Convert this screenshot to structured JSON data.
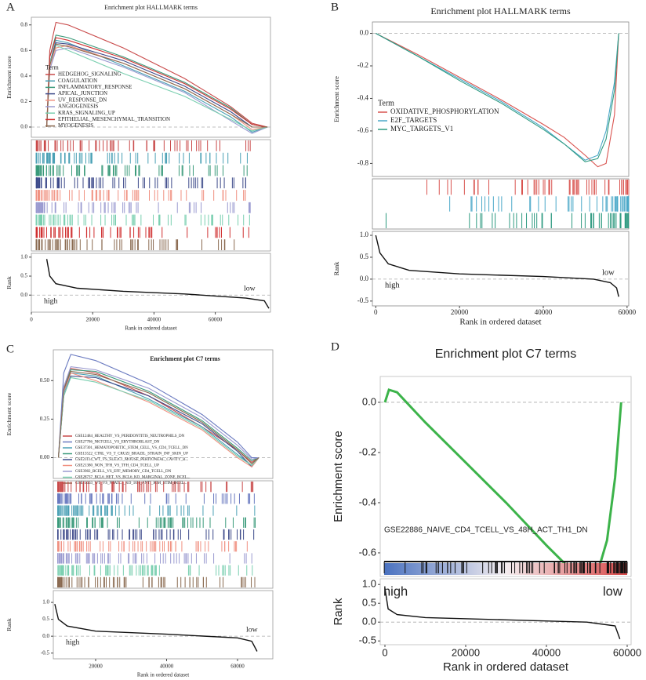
{
  "chart_data": [
    {
      "type": "line",
      "panel_label": "A",
      "title": "Enrichment plot HALLMARK terms",
      "ylabel": "Enrichment score",
      "xlabel": "Rank in ordered dataset",
      "legend_title": "Term",
      "x": [
        5000,
        6000,
        8000,
        12000,
        30000,
        50000,
        65000,
        72000,
        77000
      ],
      "series": [
        {
          "name": "HEDGEHOG_SIGNALING",
          "color": "#c94a4a",
          "values": [
            0,
            0.6,
            0.82,
            0.8,
            0.62,
            0.38,
            0.16,
            0.03,
            0
          ]
        },
        {
          "name": "COAGULATION",
          "color": "#4aa0b5",
          "values": [
            0,
            0.5,
            0.68,
            0.66,
            0.48,
            0.28,
            0.08,
            -0.04,
            0
          ]
        },
        {
          "name": "INFLAMMATORY_RESPONSE",
          "color": "#3a9a7a",
          "values": [
            0,
            0.55,
            0.72,
            0.7,
            0.55,
            0.35,
            0.15,
            0.02,
            0
          ]
        },
        {
          "name": "APICAL_JUNCTION",
          "color": "#3d4a8a",
          "values": [
            0,
            0.5,
            0.66,
            0.65,
            0.52,
            0.32,
            0.12,
            0,
            0
          ]
        },
        {
          "name": "UV_RESPONSE_DN",
          "color": "#f09080",
          "values": [
            0,
            0.45,
            0.62,
            0.64,
            0.5,
            0.3,
            0.1,
            -0.02,
            0
          ]
        },
        {
          "name": "ANGIOGENESIS",
          "color": "#9a9ad0",
          "values": [
            0,
            0.45,
            0.6,
            0.62,
            0.47,
            0.27,
            0.05,
            -0.05,
            0
          ]
        },
        {
          "name": "KRAS_SIGNALING_UP",
          "color": "#7acfb0",
          "values": [
            0,
            0.5,
            0.64,
            0.6,
            0.42,
            0.24,
            0.06,
            -0.03,
            0
          ]
        },
        {
          "name": "EPITHELIAL_MESENCHYMAL_TRANSITION",
          "color": "#d03030",
          "values": [
            0,
            0.55,
            0.7,
            0.68,
            0.54,
            0.34,
            0.14,
            0.02,
            0
          ]
        },
        {
          "name": "MYOGENESIS",
          "color": "#8a6a50",
          "values": [
            0,
            0.48,
            0.65,
            0.63,
            0.5,
            0.3,
            0.1,
            0,
            0
          ]
        }
      ],
      "xlim": [
        0,
        78000
      ],
      "xticks": [
        0,
        20000,
        40000,
        60000
      ],
      "ylim": [
        -0.08,
        0.86
      ],
      "yticks": [
        {
          "value": 0,
          "label": "0.0"
        },
        {
          "value": 0.2,
          "label": "0.2"
        },
        {
          "value": 0.4,
          "label": "0.4"
        },
        {
          "value": 0.6,
          "label": "0.6"
        },
        {
          "value": 0.8,
          "label": "0.8"
        }
      ],
      "rank": {
        "ylabel": "Rank",
        "x": [
          5000,
          6000,
          8000,
          15000,
          30000,
          50000,
          70000,
          76000,
          77500
        ],
        "values": [
          0.95,
          0.5,
          0.3,
          0.18,
          0.1,
          0.03,
          -0.08,
          -0.15,
          -0.35
        ],
        "ylim": [
          -0.45,
          1.1
        ],
        "yticks": [
          {
            "value": 0,
            "label": "0.0"
          },
          {
            "value": 0.5,
            "label": "0.5"
          },
          {
            "value": 1,
            "label": "1.0"
          }
        ]
      },
      "high_label": "high",
      "low_label": "low"
    },
    {
      "type": "line",
      "panel_label": "B",
      "title": "Enrichment plot HALLMARK terms",
      "ylabel": "Enrichment score",
      "xlabel": "Rank in ordered dataset",
      "legend_title": "Term",
      "x": [
        0,
        10000,
        20000,
        30000,
        40000,
        45000,
        50000,
        53000,
        55000,
        57000,
        58000
      ],
      "series": [
        {
          "name": "OXIDATIVE_PHOSPHORYLATION",
          "color": "#d9534f",
          "values": [
            0,
            -0.13,
            -0.27,
            -0.41,
            -0.56,
            -0.64,
            -0.75,
            -0.82,
            -0.8,
            -0.5,
            0
          ]
        },
        {
          "name": "E2F_TARGETS",
          "color": "#4aa8c8",
          "values": [
            0,
            -0.14,
            -0.28,
            -0.42,
            -0.58,
            -0.68,
            -0.78,
            -0.75,
            -0.6,
            -0.3,
            0
          ]
        },
        {
          "name": "MYC_TARGETS_V1",
          "color": "#2e9a80",
          "values": [
            0,
            -0.14,
            -0.29,
            -0.43,
            -0.59,
            -0.68,
            -0.79,
            -0.77,
            -0.65,
            -0.35,
            0
          ]
        }
      ],
      "xlim": [
        -800,
        60400
      ],
      "xticks": [
        0,
        20000,
        40000,
        60000
      ],
      "ylim": [
        -0.88,
        0.07
      ],
      "yticks": [
        {
          "value": 0,
          "label": "0.0"
        },
        {
          "value": -0.2,
          "label": "-0.2"
        },
        {
          "value": -0.4,
          "label": "-0.4"
        },
        {
          "value": -0.6,
          "label": "-0.6"
        },
        {
          "value": -0.8,
          "label": "-0.8"
        }
      ],
      "rank": {
        "ylabel": "Rank",
        "x": [
          0,
          1000,
          3000,
          8000,
          20000,
          40000,
          52000,
          56000,
          57500,
          58000
        ],
        "values": [
          1,
          0.6,
          0.35,
          0.2,
          0.12,
          0.06,
          0,
          -0.08,
          -0.2,
          -0.4
        ],
        "ylim": [
          -0.61,
          1.09
        ],
        "yticks": [
          {
            "value": 1,
            "label": "1.0"
          },
          {
            "value": 0.5,
            "label": "0.5"
          },
          {
            "value": 0,
            "label": "0.0"
          },
          {
            "value": -0.5,
            "label": "-0.5"
          }
        ]
      },
      "high_label": "high",
      "low_label": "low"
    },
    {
      "type": "line",
      "panel_label": "C",
      "title": "Enrichment plot C7 terms",
      "ylabel": "Enrichment score",
      "xlabel": "Rank in ordered dataset",
      "x": [
        9500,
        11000,
        13000,
        20000,
        35000,
        50000,
        60000,
        64000,
        66000
      ],
      "series": [
        {
          "name": "GSE12484_HEALTHY_VS_PERIDONTITIS_NEUTROPHILS_DN",
          "color": "#c94a4a",
          "values": [
            0,
            0.45,
            0.58,
            0.55,
            0.4,
            0.2,
            0.05,
            -0.03,
            0
          ]
        },
        {
          "name": "GSE27786_NKTCELL_VS_ERYTHROBLAST_DN",
          "color": "#6a7ac0",
          "values": [
            0,
            0.55,
            0.67,
            0.63,
            0.48,
            0.28,
            0.1,
            0,
            0
          ]
        },
        {
          "name": "GSE37301_HEMATOPOIETIC_STEM_CELL_VS_CD4_TCELL_DN",
          "color": "#4aa0b5",
          "values": [
            0,
            0.42,
            0.55,
            0.53,
            0.38,
            0.2,
            0.02,
            -0.05,
            0
          ]
        },
        {
          "name": "GSE13522_CTRL_VS_T_CRUZI_BRAZIL_STRAIN_INF_SKIN_UP",
          "color": "#3a9a7a",
          "values": [
            0,
            0.44,
            0.57,
            0.56,
            0.43,
            0.24,
            0.06,
            -0.02,
            0
          ]
        },
        {
          "name": "GSE23114_WT_VS_SLE2C1_MOUSE_PERITONEAL_CAVITY_B...",
          "color": "#3d4a8a",
          "values": [
            0,
            0.4,
            0.53,
            0.52,
            0.4,
            0.22,
            0.04,
            -0.06,
            0
          ]
        },
        {
          "name": "GSE21380_NON_TFH_VS_TFH_CD4_TCELL_UP",
          "color": "#f09080",
          "values": [
            0,
            0.43,
            0.55,
            0.5,
            0.36,
            0.18,
            0,
            -0.06,
            0
          ]
        },
        {
          "name": "GSE3982_BCELL_VS_EFF_MEMORY_CD4_TCELL_DN",
          "color": "#9a9ad0",
          "values": [
            0,
            0.46,
            0.59,
            0.57,
            0.45,
            0.26,
            0.08,
            -0.01,
            0
          ]
        },
        {
          "name": "GSE28737_BCL6_HET_VS_BCL6_KO_MARGINAL_ZONE_BCEL...",
          "color": "#7acfb0",
          "values": [
            0,
            0.4,
            0.52,
            0.49,
            0.37,
            0.19,
            0.01,
            -0.05,
            0
          ]
        },
        {
          "name": "GSE21063_WT_VS_NFATC1_KO_16H_ANTI_IGM_STIM_BCEL...",
          "color": "#8a6a50",
          "values": [
            0,
            0.44,
            0.56,
            0.54,
            0.42,
            0.23,
            0.05,
            -0.04,
            0
          ]
        }
      ],
      "xlim": [
        8070,
        69950
      ],
      "xticks": [
        20000,
        40000,
        60000
      ],
      "ylim": [
        -0.135,
        0.7
      ],
      "yticks": [
        {
          "value": 0,
          "label": "0.00"
        },
        {
          "value": 0.25,
          "label": "0.25"
        },
        {
          "value": 0.5,
          "label": "0.50"
        }
      ],
      "rank": {
        "ylabel": "Rank",
        "x": [
          8500,
          9500,
          12000,
          20000,
          40000,
          60000,
          64000,
          65500
        ],
        "values": [
          0.95,
          0.5,
          0.3,
          0.15,
          0.06,
          -0.05,
          -0.15,
          -0.45
        ],
        "ylim": [
          -0.67,
          1.35
        ],
        "yticks": [
          {
            "value": 1,
            "label": "1.0"
          },
          {
            "value": 0.5,
            "label": "0.5"
          },
          {
            "value": 0,
            "label": "0.0"
          },
          {
            "value": -0.5,
            "label": "-0.5"
          }
        ]
      },
      "high_label": "high",
      "low_label": "low"
    },
    {
      "type": "line",
      "panel_label": "D",
      "title": "Enrichment plot C7 terms",
      "ylabel": "Enrichment score",
      "xlabel": "Rank in ordered dataset",
      "x": [
        0,
        1000,
        3000,
        10000,
        20000,
        30000,
        40000,
        45000,
        48000,
        50000,
        53000,
        55000,
        57000,
        58500
      ],
      "series": [
        {
          "name": "GSE22886_NAIVE_CD4_TCELL_VS_48H_ACT_TH1_DN",
          "color": "#3cb34a",
          "values": [
            0,
            0.05,
            0.04,
            -0.08,
            -0.24,
            -0.4,
            -0.57,
            -0.65,
            -0.68,
            -0.68,
            -0.66,
            -0.55,
            -0.3,
            0
          ]
        }
      ],
      "xlim": [
        -1165,
        60970
      ],
      "xticks": [
        0,
        20000,
        40000,
        60000
      ],
      "ylim": [
        -0.694,
        0.103
      ],
      "yticks": [
        {
          "value": 0,
          "label": "0.0"
        },
        {
          "value": -0.2,
          "label": "-0.2"
        },
        {
          "value": -0.4,
          "label": "-0.4"
        },
        {
          "value": -0.6,
          "label": "-0.6"
        }
      ],
      "rank": {
        "ylabel": "Rank",
        "x": [
          0,
          800,
          3000,
          10000,
          30000,
          50000,
          57000,
          58200
        ],
        "values": [
          0.9,
          0.35,
          0.2,
          0.12,
          0.06,
          0,
          -0.1,
          -0.45
        ],
        "ylim": [
          -0.6,
          1.15
        ],
        "yticks": [
          {
            "value": 1,
            "label": "1.0"
          },
          {
            "value": 0.5,
            "label": "0.5"
          },
          {
            "value": 0,
            "label": "0.0"
          },
          {
            "value": -0.5,
            "label": "-0.5"
          }
        ]
      },
      "high_label": "high",
      "low_label": "low"
    }
  ]
}
